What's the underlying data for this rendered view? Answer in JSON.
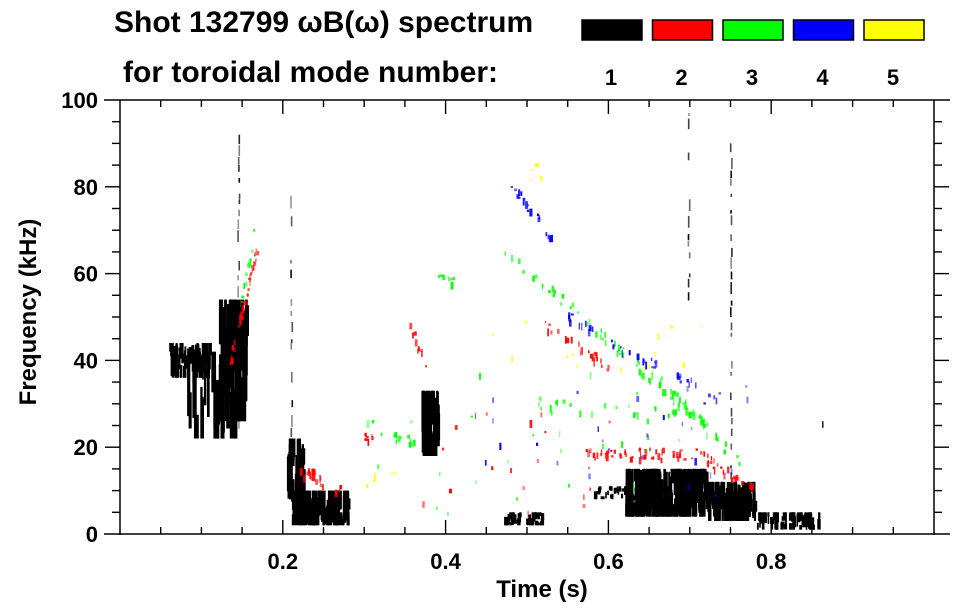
{
  "chart_data": {
    "type": "heatmap",
    "title_line1": "Shot 132799 ωB(ω) spectrum",
    "title_line2": "for toroidal mode number:",
    "xlabel": "Time (s)",
    "ylabel": "Frequency (kHz)",
    "xlim": [
      0,
      1.0
    ],
    "ylim": [
      0,
      100
    ],
    "x_ticks": [
      {
        "value": 0.2,
        "label": "0.2"
      },
      {
        "value": 0.4,
        "label": "0.4"
      },
      {
        "value": 0.6,
        "label": "0.6"
      },
      {
        "value": 0.8,
        "label": "0.8"
      }
    ],
    "y_ticks": [
      {
        "value": 0,
        "label": "0"
      },
      {
        "value": 20,
        "label": "20"
      },
      {
        "value": 40,
        "label": "40"
      },
      {
        "value": 60,
        "label": "60"
      },
      {
        "value": 80,
        "label": "80"
      },
      {
        "value": 100,
        "label": "100"
      }
    ],
    "x_minor_step": 0.05,
    "y_minor_step": 5,
    "legend": [
      {
        "mode": "1",
        "color": "#000000"
      },
      {
        "mode": "2",
        "color": "#ff0000"
      },
      {
        "mode": "3",
        "color": "#00ff00"
      },
      {
        "mode": "4",
        "color": "#0000ff"
      },
      {
        "mode": "5",
        "color": "#ffff00"
      }
    ],
    "features": [
      {
        "mode": "1",
        "kind": "blob",
        "t": [
          0.06,
          0.11
        ],
        "f": [
          36,
          44
        ],
        "density": 60
      },
      {
        "mode": "1",
        "kind": "blob",
        "t": [
          0.08,
          0.14
        ],
        "f": [
          22,
          42
        ],
        "density": 40
      },
      {
        "mode": "1",
        "kind": "blob",
        "t": [
          0.12,
          0.155
        ],
        "f": [
          26,
          54
        ],
        "density": 70
      },
      {
        "mode": "1",
        "kind": "blob",
        "t": [
          0.21,
          0.28
        ],
        "f": [
          2,
          10
        ],
        "density": 160
      },
      {
        "mode": "1",
        "kind": "blob",
        "t": [
          0.205,
          0.225
        ],
        "f": [
          8,
          22
        ],
        "density": 40
      },
      {
        "mode": "1",
        "kind": "blob",
        "t": [
          0.37,
          0.39
        ],
        "f": [
          18,
          33
        ],
        "density": 60
      },
      {
        "mode": "1",
        "kind": "blob",
        "t": [
          0.47,
          0.52
        ],
        "f": [
          2,
          5
        ],
        "density": 40
      },
      {
        "mode": "1",
        "kind": "blob",
        "t": [
          0.62,
          0.72
        ],
        "f": [
          4,
          15
        ],
        "density": 260
      },
      {
        "mode": "1",
        "kind": "blob",
        "t": [
          0.72,
          0.78
        ],
        "f": [
          3,
          12
        ],
        "density": 120
      },
      {
        "mode": "1",
        "kind": "blob",
        "t": [
          0.78,
          0.86
        ],
        "f": [
          1,
          5
        ],
        "density": 70
      },
      {
        "mode": "1",
        "kind": "blob",
        "t": [
          0.58,
          0.62
        ],
        "f": [
          8,
          11
        ],
        "density": 20
      },
      {
        "mode": "1",
        "kind": "streak",
        "t": [
          0.21,
          0.21
        ],
        "f": [
          10,
          80
        ]
      },
      {
        "mode": "1",
        "kind": "streak",
        "t": [
          0.75,
          0.75
        ],
        "f": [
          4,
          90
        ]
      },
      {
        "mode": "1",
        "kind": "streak",
        "t": [
          0.698,
          0.698
        ],
        "f": [
          55,
          97
        ]
      },
      {
        "mode": "1",
        "kind": "streak",
        "t": [
          0.145,
          0.145
        ],
        "f": [
          24,
          92
        ]
      },
      {
        "mode": "1",
        "kind": "streak",
        "t": [
          0.863,
          0.863
        ],
        "f": [
          24,
          26
        ]
      },
      {
        "mode": "2",
        "kind": "line",
        "t": [
          0.135,
          0.17
        ],
        "f": [
          40,
          67
        ],
        "density": 50
      },
      {
        "mode": "2",
        "kind": "line",
        "t": [
          0.215,
          0.27
        ],
        "f": [
          15,
          10
        ],
        "density": 30
      },
      {
        "mode": "2",
        "kind": "line",
        "t": [
          0.355,
          0.38
        ],
        "f": [
          48,
          36
        ],
        "density": 16
      },
      {
        "mode": "2",
        "kind": "line",
        "t": [
          0.3,
          0.31
        ],
        "f": [
          22,
          22
        ],
        "density": 8
      },
      {
        "mode": "2",
        "kind": "line",
        "t": [
          0.52,
          0.6
        ],
        "f": [
          48,
          38
        ],
        "density": 30
      },
      {
        "mode": "2",
        "kind": "line",
        "t": [
          0.57,
          0.72
        ],
        "f": [
          18,
          18
        ],
        "density": 70
      },
      {
        "mode": "2",
        "kind": "line",
        "t": [
          0.72,
          0.78
        ],
        "f": [
          17,
          10
        ],
        "density": 30
      },
      {
        "mode": "2",
        "kind": "scatter",
        "t": [
          0.36,
          0.6
        ],
        "f": [
          3,
          30
        ],
        "density": 20
      },
      {
        "mode": "3",
        "kind": "line",
        "t": [
          0.1486,
          0.165
        ],
        "f": [
          53,
          70
        ],
        "density": 14
      },
      {
        "mode": "3",
        "kind": "line",
        "t": [
          0.47,
          0.72
        ],
        "f": [
          65,
          25
        ],
        "density": 90
      },
      {
        "mode": "3",
        "kind": "line",
        "t": [
          0.5,
          0.7
        ],
        "f": [
          30,
          27
        ],
        "density": 30
      },
      {
        "mode": "3",
        "kind": "line",
        "t": [
          0.66,
          0.76
        ],
        "f": [
          36,
          16
        ],
        "density": 30
      },
      {
        "mode": "3",
        "kind": "line",
        "t": [
          0.33,
          0.36
        ],
        "f": [
          22,
          21
        ],
        "density": 14
      },
      {
        "mode": "3",
        "kind": "line",
        "t": [
          0.39,
          0.41
        ],
        "f": [
          58,
          58
        ],
        "density": 8
      },
      {
        "mode": "3",
        "kind": "scatter",
        "t": [
          0.3,
          0.7
        ],
        "f": [
          4,
          40
        ],
        "density": 28
      },
      {
        "mode": "4",
        "kind": "line",
        "t": [
          0.48,
          0.53
        ],
        "f": [
          80,
          68
        ],
        "density": 30
      },
      {
        "mode": "4",
        "kind": "line",
        "t": [
          0.55,
          0.66
        ],
        "f": [
          50,
          38
        ],
        "density": 30
      },
      {
        "mode": "4",
        "kind": "line",
        "t": [
          0.64,
          0.74
        ],
        "f": [
          40,
          31
        ],
        "density": 20
      },
      {
        "mode": "4",
        "kind": "scatter",
        "t": [
          0.44,
          0.8
        ],
        "f": [
          8,
          36
        ],
        "density": 26
      },
      {
        "mode": "5",
        "kind": "scatter",
        "t": [
          0.5,
          0.52
        ],
        "f": [
          82,
          86
        ],
        "density": 6
      },
      {
        "mode": "5",
        "kind": "scatter",
        "t": [
          0.45,
          0.72
        ],
        "f": [
          36,
          50
        ],
        "density": 16
      },
      {
        "mode": "5",
        "kind": "scatter",
        "t": [
          0.3,
          0.34
        ],
        "f": [
          10,
          16
        ],
        "density": 5
      }
    ]
  }
}
